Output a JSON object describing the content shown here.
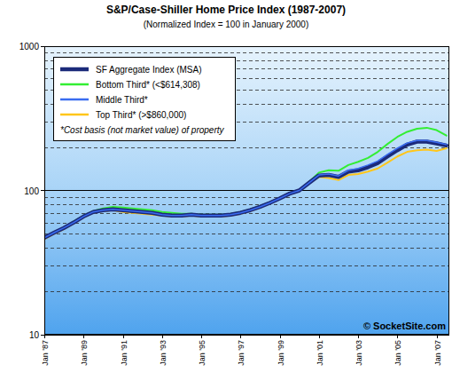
{
  "chart_data": {
    "type": "line",
    "title": "S&P/Case-Shiller Home Price Index (1987-2007)",
    "subtitle": "(Normalized Index = 100 in January 2000)",
    "log": "y",
    "grid": true,
    "legend": "upper left",
    "annotations": [
      "*Cost basis (not market value) of property",
      "© SocketSite.com"
    ],
    "x": [
      1987,
      1987.5,
      1988,
      1988.5,
      1989,
      1989.5,
      1990,
      1990.5,
      1991,
      1991.5,
      1992,
      1992.5,
      1993,
      1993.5,
      1994,
      1994.5,
      1995,
      1995.5,
      1996,
      1996.5,
      1997,
      1997.5,
      1998,
      1998.5,
      1999,
      1999.5,
      2000,
      2000.5,
      2001,
      2001.5,
      2002,
      2002.5,
      2003,
      2003.5,
      2004,
      2004.5,
      2005,
      2005.5,
      2006,
      2006.5,
      2007,
      2007.5
    ],
    "xlim": [
      1987,
      2007.65
    ],
    "xticks": [
      {
        "value": 1987,
        "label": "Jan '87"
      },
      {
        "value": 1989,
        "label": "Jan '89"
      },
      {
        "value": 1991,
        "label": "Jan '91"
      },
      {
        "value": 1993,
        "label": "Jan '93"
      },
      {
        "value": 1995,
        "label": "Jan '95"
      },
      {
        "value": 1997,
        "label": "Jan '97"
      },
      {
        "value": 1999,
        "label": "Jan '99"
      },
      {
        "value": 2001,
        "label": "Jan '01"
      },
      {
        "value": 2003,
        "label": "Jan '03"
      },
      {
        "value": 2005,
        "label": "Jan '05"
      },
      {
        "value": 2007,
        "label": "Jan '07"
      }
    ],
    "ylim": [
      10,
      1000
    ],
    "yticks": [
      10,
      100,
      1000
    ],
    "series": [
      {
        "name": "SF Aggregate Index (MSA)",
        "color": "#1b2a7a",
        "values": [
          47,
          51,
          55,
          60,
          66,
          71,
          73,
          74,
          73,
          72,
          71,
          70,
          68,
          67,
          67,
          68,
          67,
          67,
          67,
          68,
          70,
          73,
          77,
          82,
          88,
          95,
          100,
          113,
          127,
          128,
          124,
          135,
          138,
          145,
          155,
          172,
          190,
          208,
          218,
          218,
          212,
          205
        ]
      },
      {
        "name": "Bottom Third* (<$614,308)",
        "color": "#33ee33",
        "values": [
          47,
          51,
          55,
          61,
          67,
          72,
          75,
          77,
          76,
          75,
          74,
          73,
          71,
          70,
          69,
          69,
          68,
          68,
          68,
          69,
          71,
          74,
          78,
          83,
          89,
          96,
          100,
          115,
          133,
          138,
          137,
          150,
          158,
          168,
          185,
          210,
          235,
          255,
          268,
          272,
          262,
          240
        ]
      },
      {
        "name": "Middle Third*",
        "color": "#3a6cf0",
        "values": [
          47,
          51,
          55,
          60,
          66,
          71,
          73,
          74,
          73,
          72,
          71,
          70,
          68,
          67,
          67,
          68,
          67,
          67,
          67,
          68,
          70,
          73,
          77,
          82,
          88,
          95,
          100,
          113,
          128,
          130,
          126,
          138,
          142,
          150,
          160,
          178,
          196,
          213,
          222,
          222,
          216,
          208
        ]
      },
      {
        "name": "Top Third* (>$860,000)",
        "color": "#ffc61a",
        "values": [
          46,
          50,
          54,
          59,
          65,
          70,
          72,
          73,
          71,
          70,
          69,
          68,
          67,
          66,
          66,
          67,
          66,
          66,
          66,
          67,
          69,
          72,
          76,
          81,
          87,
          94,
          100,
          112,
          124,
          122,
          118,
          128,
          130,
          135,
          142,
          156,
          172,
          185,
          190,
          192,
          188,
          196
        ]
      }
    ]
  }
}
